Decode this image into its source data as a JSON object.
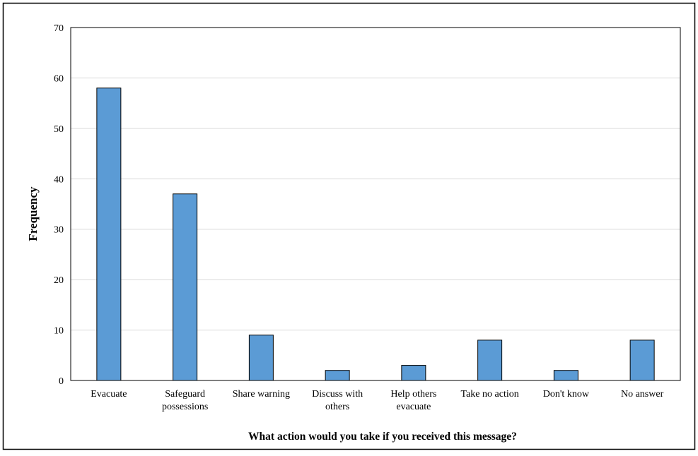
{
  "chart_data": {
    "type": "bar",
    "title": "",
    "xlabel": "What action would you take if you received this message?",
    "ylabel": "Frequency",
    "categories": [
      [
        "Evacuate"
      ],
      [
        "Safeguard",
        "possessions"
      ],
      [
        "Share warning"
      ],
      [
        "Discuss with",
        "others"
      ],
      [
        "Help others",
        "evacuate"
      ],
      [
        "Take no action"
      ],
      [
        "Don't know"
      ],
      [
        "No answer"
      ]
    ],
    "values": [
      58,
      37,
      9,
      2,
      3,
      8,
      2,
      8
    ],
    "ylim": [
      0,
      70
    ],
    "yticks": [
      0,
      10,
      20,
      30,
      40,
      50,
      60,
      70
    ],
    "grid": true,
    "legend": "none",
    "colors": {
      "bar_fill": "#5b9bd5",
      "bar_stroke": "#000000",
      "grid": "#d9d9d9",
      "axis": "#000000",
      "frame": "#000000",
      "text": "#000000"
    }
  }
}
